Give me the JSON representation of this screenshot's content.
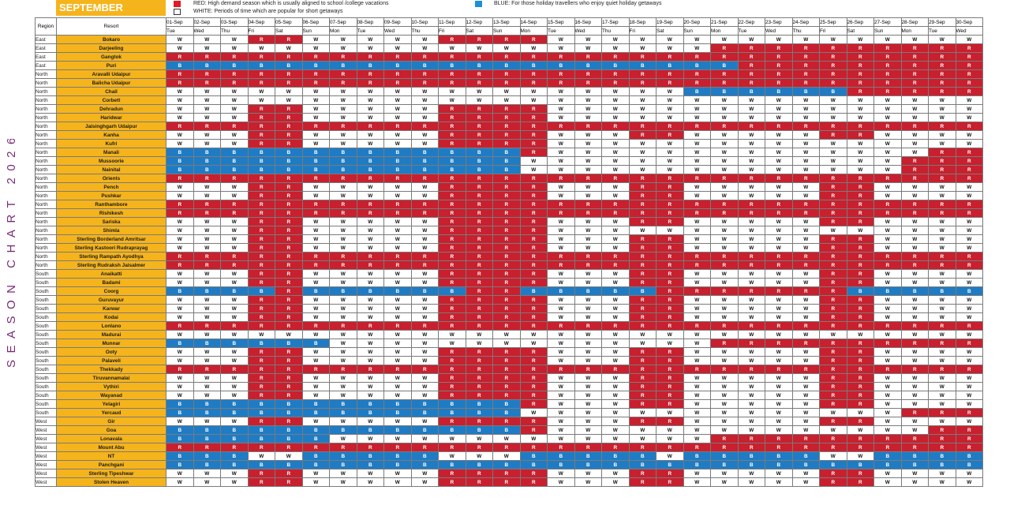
{
  "title": "SEASON CHART 2026",
  "month": "SEPTEMBER",
  "legend": {
    "red": "RED: High demand season which is usually aligned to school /college vacations",
    "white": "WHITE: Periods of time which are popular for short getaways",
    "blue": "BLUE: For those holiday travellers who enjoy quiet holiday getaways"
  },
  "colors": {
    "red": "#c8202e",
    "blue": "#1f7cc4",
    "white": "#ffffff",
    "gold": "#f5b41c",
    "title": "#7a2a78"
  },
  "headers": {
    "region": "Region",
    "resort": "Resort"
  },
  "dates": [
    "01-Sep",
    "02-Sep",
    "03-Sep",
    "04-Sep",
    "05-Sep",
    "06-Sep",
    "07-Sep",
    "08-Sep",
    "09-Sep",
    "10-Sep",
    "11-Sep",
    "12-Sep",
    "13-Sep",
    "14-Sep",
    "15-Sep",
    "16-Sep",
    "17-Sep",
    "18-Sep",
    "19-Sep",
    "20-Sep",
    "21-Sep",
    "22-Sep",
    "23-Sep",
    "24-Sep",
    "25-Sep",
    "26-Sep",
    "27-Sep",
    "28-Sep",
    "29-Sep",
    "30-Sep"
  ],
  "days": [
    "Tue",
    "Wed",
    "Thu",
    "Fri",
    "Sat",
    "Sun",
    "Mon",
    "Tue",
    "Wed",
    "Thu",
    "Fri",
    "Sat",
    "Sun",
    "Mon",
    "Tue",
    "Wed",
    "Thu",
    "Fri",
    "Sat",
    "Sun",
    "Mon",
    "Tue",
    "Wed",
    "Thu",
    "Fri",
    "Sat",
    "Sun",
    "Mon",
    "Tue",
    "Wed"
  ],
  "rows": [
    {
      "region": "East",
      "resort": "Bokaro",
      "codes": "WWWRRWWWWWRRRRWWWWWWWWWWWWWWWW"
    },
    {
      "region": "East",
      "resort": "Darjeeling",
      "codes": "WWWWWWWWWWWWWWWWWWWWRRRRRRRRRR"
    },
    {
      "region": "East",
      "resort": "Gangtok",
      "codes": "RRRRRRRRRRRRRRRRRRRRRRRRRRRRRR"
    },
    {
      "region": "East",
      "resort": "Puri",
      "codes": "BBBBBBBBBBBBBBBBBBBBBRRRRRRRRR"
    },
    {
      "region": "North",
      "resort": "Aravalli Udaipur",
      "codes": "RRRRRRRRRRRRRRRRRRRRRRRRRRRRRR"
    },
    {
      "region": "North",
      "resort": "Balicha Udaipur",
      "codes": "RRRRRRRRRRRRRRRRRRRRRRRRRRRRRR"
    },
    {
      "region": "North",
      "resort": "Chail",
      "codes": "WWWWWWWWWWWWWWWWWWWBBBBBBRRRRR"
    },
    {
      "region": "North",
      "resort": "Corbett",
      "codes": "WWWWWWWWWWWWWWWWWWWWWWWWWWWWWW"
    },
    {
      "region": "North",
      "resort": "Dehradun",
      "codes": "WWWRRWWWWWRRRRWWWWWWWWWWWWWWWW"
    },
    {
      "region": "North",
      "resort": "Haridwar",
      "codes": "WWWRRWWWWWRRRRWWWWWWWWWWWWWWWW"
    },
    {
      "region": "North",
      "resort": "Jaisinghgarh Udaipur",
      "codes": "RRRRRRRRRRRRRRRRRRRRRRRRRRRRRR"
    },
    {
      "region": "North",
      "resort": "Kanha",
      "codes": "WWWRRWWWWWRRRRWWWRRWWWWWRRWWWW"
    },
    {
      "region": "North",
      "resort": "Kufri",
      "codes": "WWWRRWWWWWRRRRWWWWWWWWWWWWWWWW"
    },
    {
      "region": "North",
      "resort": "Manali",
      "codes": "BBBBBBBBBBBBBRWWWWWWWWWWWWWWRR"
    },
    {
      "region": "North",
      "resort": "Mussoorie",
      "codes": "BBBBBBBBBBBBBWWWWWWWWWWWWWWRRR"
    },
    {
      "region": "North",
      "resort": "Nainital",
      "codes": "BBBBBBBBBBBBBWWWWWWWWWWWWWWRRR"
    },
    {
      "region": "North",
      "resort": "Orients",
      "codes": "RRRRRRRRRRRRRRRRRRRRRRRRRRRRRR"
    },
    {
      "region": "North",
      "resort": "Pench",
      "codes": "WWWRRWWWWWRRRRWWWRRWWWWWRRWWWW"
    },
    {
      "region": "North",
      "resort": "Pushkar",
      "codes": "WWWRRWWWWWRRRRWWWRRWWWWWRRWWWW"
    },
    {
      "region": "North",
      "resort": "Ranthambore",
      "codes": "RRRRRRRRRRRRRRRRRRRRRRRRRRRRRR"
    },
    {
      "region": "North",
      "resort": "Rishikesh",
      "codes": "RRRRRRRRRRRRRRRRRRRRRRRRRRRRRR"
    },
    {
      "region": "North",
      "resort": "Sariska",
      "codes": "WWWRRWWWWWRRRRWWWRRWWWWWRRWWWW"
    },
    {
      "region": "North",
      "resort": "Shimla",
      "codes": "WWWRRWWWWWRRRRWWWWWWWWWWWWWWWW"
    },
    {
      "region": "North",
      "resort": "Sterling Borderland Amritsar",
      "codes": "WWWRRWWWWWRRRRWWWRRWWWWWRRWWWW"
    },
    {
      "region": "North",
      "resort": "Sterling Kastoori Rudraprayag",
      "codes": "WWWRRWWWWWRRRRWWWRRWWWWWRRWWWW"
    },
    {
      "region": "North",
      "resort": "Sterling Rampath Ayodhya",
      "codes": "RRRRRRRRRRRRRRRRRRRRRRRRRRRRRR"
    },
    {
      "region": "North",
      "resort": "Sterling Rudraksh Jaisalmer",
      "codes": "RRRRRRRRRRRRRRRRRRRRRRRRRRRRRR"
    },
    {
      "region": "South",
      "resort": "Anaikatti",
      "codes": "WWWRRWWWWWRRRRWWWRRWWWWWRRWWWW"
    },
    {
      "region": "South",
      "resort": "Badami",
      "codes": "WWWRRWWWWWRRRRWWWRRWWWWWRRWWWW"
    },
    {
      "region": "South",
      "resort": "Coorg",
      "codes": "BBBBRBBBBBBRRBBBBBRRRRRRRBBBBB"
    },
    {
      "region": "South",
      "resort": "Guruvayur",
      "codes": "WWWRRWWWWWRRRRWWWRRWWWWWRRWWWW"
    },
    {
      "region": "South",
      "resort": "Karwar",
      "codes": "WWWRRWWWWWRRRRWWWRRWWWWWRRWWWW"
    },
    {
      "region": "South",
      "resort": "Kodai",
      "codes": "WWWRRWWWWWRRRRWWWRRWWWWWRRWWWW"
    },
    {
      "region": "South",
      "resort": "Lonlano",
      "codes": "RRRRRRRRRRRRRRRRRRRRRRRRRRRRRR"
    },
    {
      "region": "South",
      "resort": "Madurai",
      "codes": "WWWWWWWWWWWWWWWWWWWWWWWWWWWWWW"
    },
    {
      "region": "South",
      "resort": "Munnar",
      "codes": "BBBBBBWWWWWWWWWWWWWWRRRRRRRRRR"
    },
    {
      "region": "South",
      "resort": "Ooty",
      "codes": "WWWRRWWWWWRRRRWWWRRWWWWWRRWWWW"
    },
    {
      "region": "South",
      "resort": "Palaveli",
      "codes": "WWWRRWWWWWRRRRWWWRRWWWWWRRWWWW"
    },
    {
      "region": "South",
      "resort": "Thekkady",
      "codes": "RRRRRRRRRRRRRRRRRRRRRRRRRRRRRR"
    },
    {
      "region": "South",
      "resort": "Tiruvannamalai",
      "codes": "WWWRRWWWWWRRRRWWWRRWWWWWRRWWWW"
    },
    {
      "region": "South",
      "resort": "Vythiri",
      "codes": "WWWRRWWWWWRRRRWWWRRWWWWWRRWWWW"
    },
    {
      "region": "South",
      "resort": "Wayanad",
      "codes": "WWWRRWWWWWRRRRWWWRRWWWWWRRWWWW"
    },
    {
      "region": "South",
      "resort": "Yelagiri",
      "codes": "BBBBBBBBBBBBBRWWWRRWWWWWRRWWWW"
    },
    {
      "region": "South",
      "resort": "Yercaud",
      "codes": "BBBBBBBBBBBBBWWWWWWWWWWWWWWRRR"
    },
    {
      "region": "West",
      "resort": "Gir",
      "codes": "WWWRRWWWWWRRRRWWWRRWWWWWRRWWWW"
    },
    {
      "region": "West",
      "resort": "Goa",
      "codes": "BBBBBBBBBBBBBRWWWWWWWWWWWWWWRR"
    },
    {
      "region": "West",
      "resort": "Lonavala",
      "codes": "BBBBBBWWWWWWWWWWWWWWRRRRRRRRRR"
    },
    {
      "region": "West",
      "resort": "Mount Abu",
      "codes": "RRRRRRRRRRRRRRRRRRRRRRRRRRRRRR"
    },
    {
      "region": "West",
      "resort": "NT",
      "codes": "BBBWWBBBBBWWWBBBBBWBBBBBWWBBBB"
    },
    {
      "region": "West",
      "resort": "Panchgani",
      "codes": "BBBBBBBBBBBBBBBBBBBBBBBBBBBBBB"
    },
    {
      "region": "West",
      "resort": "Sterling Tipeshwar",
      "codes": "WWWRRWWWWWRRRRWWWRRWWWWWRRWWWW"
    },
    {
      "region": "West",
      "resort": "Stolen Heaven",
      "codes": "WWWRRWWWWWRRRRWWWRRWWWWWRRWWWW"
    }
  ]
}
